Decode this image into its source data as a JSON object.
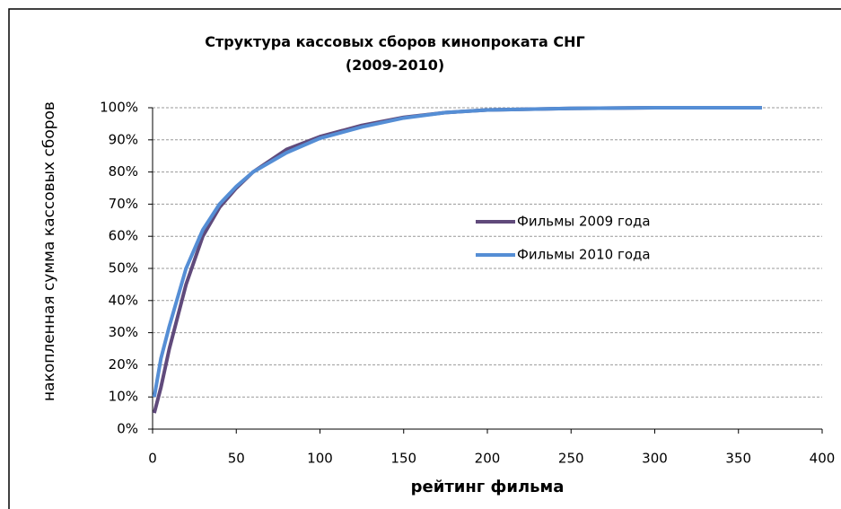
{
  "chart_data": {
    "type": "line",
    "title": "Структура кассовых сборов кинопроката СНГ (2009-2010)",
    "xlabel": "рейтинг фильма",
    "ylabel": "накопленная сумма кассовых сборов",
    "x": [
      1,
      5,
      10,
      20,
      30,
      40,
      50,
      60,
      80,
      100,
      125,
      150,
      175,
      200,
      250,
      300,
      364
    ],
    "series": [
      {
        "name": "Фильмы 2009 года",
        "color": "#604a7b",
        "values": [
          5,
          13,
          25,
          45,
          60,
          69,
          75,
          80,
          87,
          91,
          94.5,
          97,
          98.5,
          99.3,
          99.8,
          100,
          100
        ]
      },
      {
        "name": "Фильмы 2010 года",
        "color": "#558ed5",
        "values": [
          10,
          22,
          32,
          50,
          62,
          70,
          75.5,
          80,
          86,
          90.5,
          94,
          96.8,
          98.5,
          99.3,
          99.8,
          100,
          100
        ]
      }
    ],
    "xlim": [
      0,
      400
    ],
    "xticks": [
      0,
      50,
      100,
      150,
      200,
      250,
      300,
      350,
      400
    ],
    "ylim": [
      0,
      100
    ],
    "yticks": [
      {
        "value": 0,
        "label": "0%"
      },
      {
        "value": 10,
        "label": "10%"
      },
      {
        "value": 20,
        "label": "20%"
      },
      {
        "value": 30,
        "label": "30%"
      },
      {
        "value": 40,
        "label": "40%"
      },
      {
        "value": 50,
        "label": "50%"
      },
      {
        "value": 60,
        "label": "60%"
      },
      {
        "value": 70,
        "label": "70%"
      },
      {
        "value": 80,
        "label": "80%"
      },
      {
        "value": 90,
        "label": "90%"
      },
      {
        "value": 100,
        "label": "100%"
      }
    ],
    "grid": true,
    "legend": "right"
  }
}
